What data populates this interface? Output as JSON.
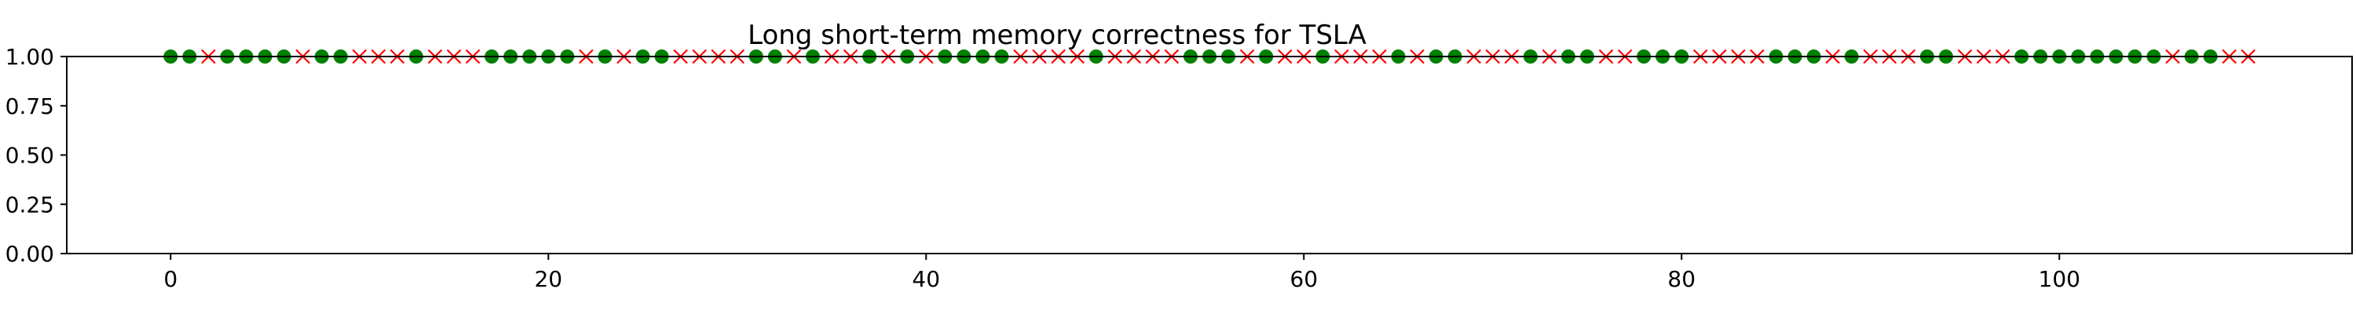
{
  "chart_data": {
    "type": "scatter",
    "title": "Long short-term memory correctness for TSLA",
    "xlabel": "",
    "ylabel": "",
    "xlim": [
      -5.5,
      115.5
    ],
    "ylim": [
      0,
      1
    ],
    "xticks": [
      0,
      20,
      40,
      60,
      80,
      100
    ],
    "yticks": [
      0.0,
      0.25,
      0.5,
      0.75,
      1.0
    ],
    "xtick_labels": [
      "0",
      "20",
      "40",
      "60",
      "80",
      "100"
    ],
    "ytick_labels": [
      "0.00",
      "0.25",
      "0.50",
      "0.75",
      "1.00"
    ],
    "grid": false,
    "legend": "none",
    "colors": {
      "correct": "#008000",
      "incorrect": "#ff0000",
      "axes": "#000000",
      "background": "#ffffff"
    },
    "series": [
      {
        "marker": "circle",
        "color": "#008000",
        "x": [
          0,
          1,
          3,
          4,
          5,
          6,
          8,
          9,
          13,
          17,
          18,
          19,
          20,
          21,
          23,
          25,
          26,
          31,
          32,
          34,
          37,
          39,
          41,
          42,
          43,
          44,
          49,
          54,
          55,
          56,
          58,
          61,
          65,
          67,
          68,
          72,
          74,
          75,
          78,
          79,
          80,
          85,
          86,
          87,
          89,
          93,
          94,
          98,
          99,
          100,
          101,
          102,
          103,
          104,
          105,
          107,
          108
        ],
        "y": [
          1,
          1,
          1,
          1,
          1,
          1,
          1,
          1,
          1,
          1,
          1,
          1,
          1,
          1,
          1,
          1,
          1,
          1,
          1,
          1,
          1,
          1,
          1,
          1,
          1,
          1,
          1,
          1,
          1,
          1,
          1,
          1,
          1,
          1,
          1,
          1,
          1,
          1,
          1,
          1,
          1,
          1,
          1,
          1,
          1,
          1,
          1,
          1,
          1,
          1,
          1,
          1,
          1,
          1,
          1,
          1,
          1
        ]
      },
      {
        "marker": "x",
        "color": "#ff0000",
        "x": [
          2,
          7,
          10,
          11,
          12,
          14,
          15,
          16,
          22,
          24,
          27,
          28,
          29,
          30,
          33,
          35,
          36,
          38,
          40,
          45,
          46,
          47,
          48,
          50,
          51,
          52,
          53,
          57,
          59,
          60,
          62,
          63,
          64,
          66,
          69,
          70,
          71,
          73,
          76,
          77,
          81,
          82,
          83,
          84,
          88,
          90,
          91,
          92,
          95,
          96,
          97,
          106,
          109,
          110
        ],
        "y": [
          1,
          1,
          1,
          1,
          1,
          1,
          1,
          1,
          1,
          1,
          1,
          1,
          1,
          1,
          1,
          1,
          1,
          1,
          1,
          1,
          1,
          1,
          1,
          1,
          1,
          1,
          1,
          1,
          1,
          1,
          1,
          1,
          1,
          1,
          1,
          1,
          1,
          1,
          1,
          1,
          1,
          1,
          1,
          1,
          1,
          1,
          1,
          1,
          1,
          1,
          1,
          1,
          1,
          1
        ]
      }
    ]
  }
}
